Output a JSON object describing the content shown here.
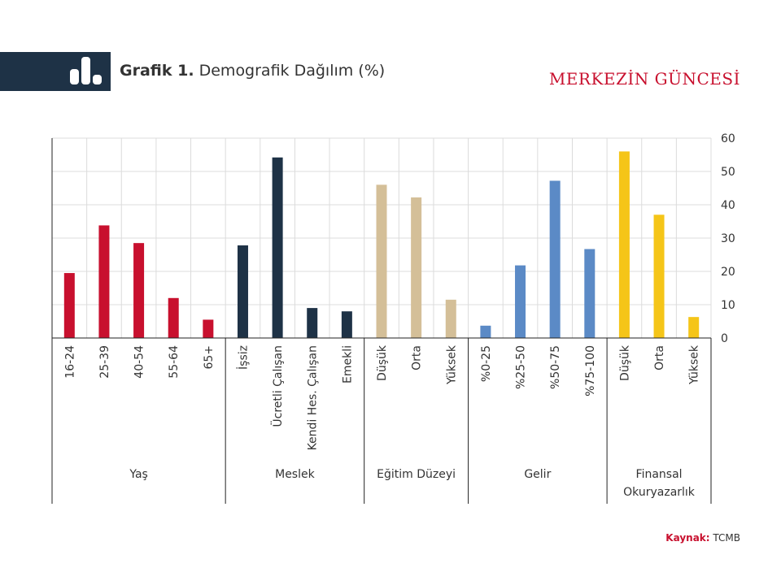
{
  "header": {
    "title_bold": "Grafik 1.",
    "title_text": "Demografik Dağılım (%)",
    "brand": "MERKEZİN GÜNCESİ",
    "icon": "bar-chart-icon"
  },
  "source": {
    "label": "Kaynak:",
    "value": "TCMB"
  },
  "colors": {
    "header_band": "#1e3246",
    "brand": "#c8102e",
    "Yaş": "#c8102e",
    "Meslek": "#1e3246",
    "Eğitim Düzeyi": "#d4bf98",
    "Gelir": "#5b8ac6",
    "Finansal Okuryazarlık": "#f5c518"
  },
  "chart_data": {
    "type": "bar",
    "ylim": [
      0,
      60
    ],
    "yticks": [
      0,
      10,
      20,
      30,
      40,
      50,
      60
    ],
    "y_axis_side": "right",
    "grid": true,
    "groups": [
      {
        "name": "Yaş",
        "name_lines": [
          "Yaş"
        ],
        "categories": [
          "16-24",
          "25-39",
          "40-54",
          "55-64",
          "65+"
        ],
        "values": [
          19.5,
          33.8,
          28.5,
          12,
          5.5
        ]
      },
      {
        "name": "Meslek",
        "name_lines": [
          "Meslek"
        ],
        "categories": [
          "İşsiz",
          "Ücretli Çalışan",
          "Kendi Hes. Çalışan",
          "Emekli"
        ],
        "values": [
          27.8,
          54.2,
          9,
          8
        ]
      },
      {
        "name": "Eğitim Düzeyi",
        "name_lines": [
          "Eğitim Düzeyi"
        ],
        "categories": [
          "Düşük",
          "Orta",
          "Yüksek"
        ],
        "values": [
          46,
          42.2,
          11.5
        ]
      },
      {
        "name": "Gelir",
        "name_lines": [
          "Gelir"
        ],
        "categories": [
          "%0-25",
          "%25-50",
          "%50-75",
          "%75-100"
        ],
        "values": [
          3.7,
          21.8,
          47.2,
          26.7
        ]
      },
      {
        "name": "Finansal Okuryazarlık",
        "name_lines": [
          "Finansal",
          "Okuryazarlık"
        ],
        "categories": [
          "Düşük",
          "Orta",
          "Yüksek"
        ],
        "values": [
          56,
          37,
          6.3
        ]
      }
    ]
  }
}
